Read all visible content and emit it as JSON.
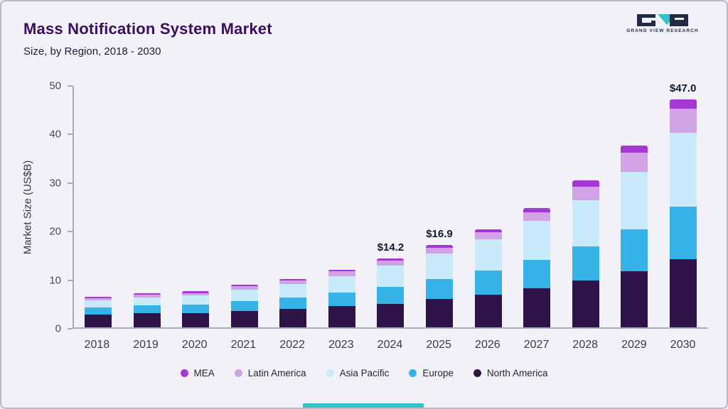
{
  "header": {
    "title": "Mass Notification System Market",
    "subtitle": "Size, by Region, 2018 - 2030",
    "logo_text": "GRAND VIEW RESEARCH"
  },
  "colors": {
    "background": "#f2f1f7",
    "title": "#3c0e5e",
    "axis": "#a8acb4",
    "logo_teal": "#2ec4c6",
    "logo_navy": "#232a45"
  },
  "chart_data": {
    "type": "bar",
    "stacked": true,
    "title": "Mass Notification System Market Size, by Region, 2018 - 2030",
    "xlabel": "",
    "ylabel": "Market Size (US$B)",
    "ylim": [
      0,
      50
    ],
    "yticks": [
      0,
      10,
      20,
      30,
      40,
      50
    ],
    "grid": false,
    "legend_position": "bottom",
    "categories": [
      "2018",
      "2019",
      "2020",
      "2021",
      "2022",
      "2023",
      "2024",
      "2025",
      "2026",
      "2027",
      "2028",
      "2029",
      "2030"
    ],
    "series": [
      {
        "name": "North America",
        "color": "#2e1348",
        "values": [
          2.6,
          2.9,
          3.0,
          3.4,
          3.8,
          4.4,
          4.9,
          5.8,
          6.8,
          8.0,
          9.6,
          11.6,
          14.1
        ]
      },
      {
        "name": "Europe",
        "color": "#35b2e6",
        "values": [
          1.5,
          1.6,
          1.7,
          2.0,
          2.3,
          2.7,
          3.5,
          4.2,
          4.9,
          5.9,
          7.1,
          8.6,
          10.7
        ]
      },
      {
        "name": "Asia Pacific",
        "color": "#c9eafa",
        "values": [
          1.5,
          1.7,
          1.9,
          2.4,
          2.8,
          3.5,
          4.4,
          5.2,
          6.4,
          8.0,
          9.5,
          11.8,
          15.2
        ]
      },
      {
        "name": "Latin America",
        "color": "#cfa3e6",
        "values": [
          0.45,
          0.5,
          0.5,
          0.65,
          0.7,
          0.9,
          1.0,
          1.2,
          1.5,
          1.8,
          2.8,
          4.0,
          5.0
        ]
      },
      {
        "name": "MEA",
        "color": "#a438d4",
        "values": [
          0.25,
          0.3,
          0.3,
          0.35,
          0.4,
          0.4,
          0.4,
          0.5,
          0.6,
          0.8,
          1.2,
          1.5,
          2.0
        ]
      }
    ],
    "totals": [
      6.3,
      7.0,
      7.4,
      8.8,
      10.0,
      11.9,
      14.2,
      16.9,
      20.2,
      24.5,
      30.2,
      37.5,
      47.0
    ],
    "total_labels": {
      "2024": "$14.2",
      "2025": "$16.9",
      "2030": "$47.0"
    },
    "legend": [
      "MEA",
      "Latin America",
      "Asia Pacific",
      "Europe",
      "North America"
    ]
  }
}
